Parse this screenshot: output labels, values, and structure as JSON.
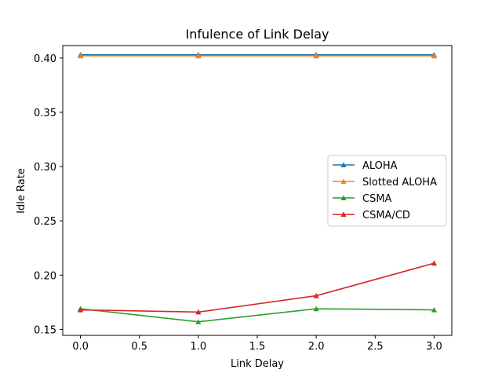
{
  "chart_data": {
    "type": "line",
    "title": "Infulence of Link Delay",
    "xlabel": "Link Delay",
    "ylabel": "Idle Rate",
    "x": [
      0.0,
      1.0,
      2.0,
      3.0
    ],
    "xlim": [
      -0.15,
      3.15
    ],
    "ylim": [
      0.1445,
      0.4115
    ],
    "xticks": [
      0.0,
      0.5,
      1.0,
      1.5,
      2.0,
      2.5,
      3.0
    ],
    "xtick_labels": [
      "0.0",
      "0.5",
      "1.0",
      "1.5",
      "2.0",
      "2.5",
      "3.0"
    ],
    "yticks": [
      0.15,
      0.2,
      0.25,
      0.3,
      0.35,
      0.4
    ],
    "ytick_labels": [
      "0.15",
      "0.20",
      "0.25",
      "0.30",
      "0.35",
      "0.40"
    ],
    "grid": false,
    "legend_position": "center-right",
    "marker": "triangle-up",
    "series": [
      {
        "name": "ALOHA",
        "color": "#1f77b4",
        "values": [
          0.403,
          0.403,
          0.403,
          0.403
        ]
      },
      {
        "name": "Slotted ALOHA",
        "color": "#ff7f0e",
        "values": [
          0.402,
          0.402,
          0.402,
          0.402
        ]
      },
      {
        "name": "CSMA",
        "color": "#2ca02c",
        "values": [
          0.169,
          0.157,
          0.169,
          0.168
        ]
      },
      {
        "name": "CSMA/CD",
        "color": "#d62728",
        "values": [
          0.168,
          0.166,
          0.181,
          0.211
        ]
      }
    ]
  }
}
